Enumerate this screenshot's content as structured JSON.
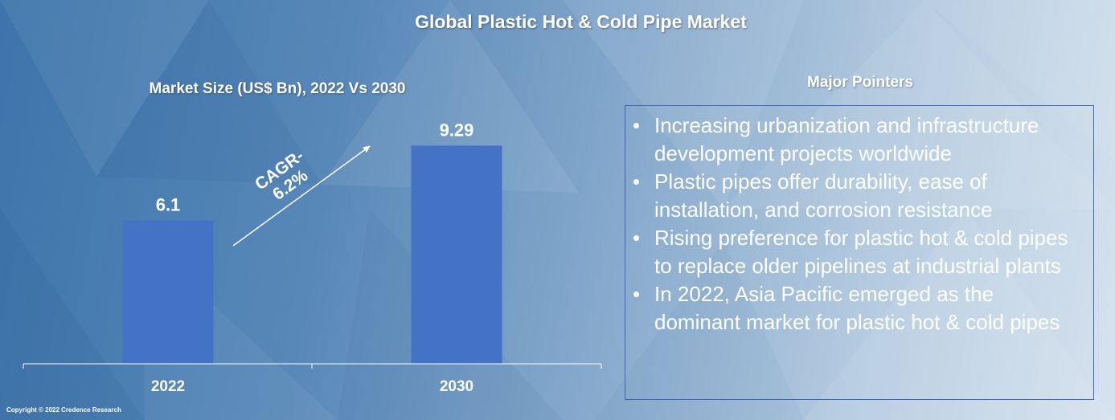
{
  "title": "Global Plastic Hot & Cold Pipe Market",
  "chart_data": {
    "type": "bar",
    "title": "Market Size (US$ Bn), 2022 Vs 2030",
    "categories": [
      "2022",
      "2030"
    ],
    "values": [
      6.1,
      9.29
    ],
    "data_labels": [
      "6.1",
      "9.29"
    ],
    "ylim": [
      0,
      10.6
    ],
    "bar_color": "#4472c4",
    "grid": false,
    "annotation": {
      "line1": "CAGR-",
      "line2": "6.2%"
    }
  },
  "pointers": {
    "title": "Major Pointers",
    "items": [
      "Increasing urbanization and infrastructure development projects worldwide",
      "Plastic pipes offer durability, ease of installation, and corrosion resistance",
      "Rising preference for plastic hot & cold pipes to replace older pipelines at industrial plants",
      "In 2022, Asia Pacific emerged as the dominant market for plastic hot & cold pipes"
    ]
  },
  "copyright": "Copyright © 2022 Credence Research"
}
